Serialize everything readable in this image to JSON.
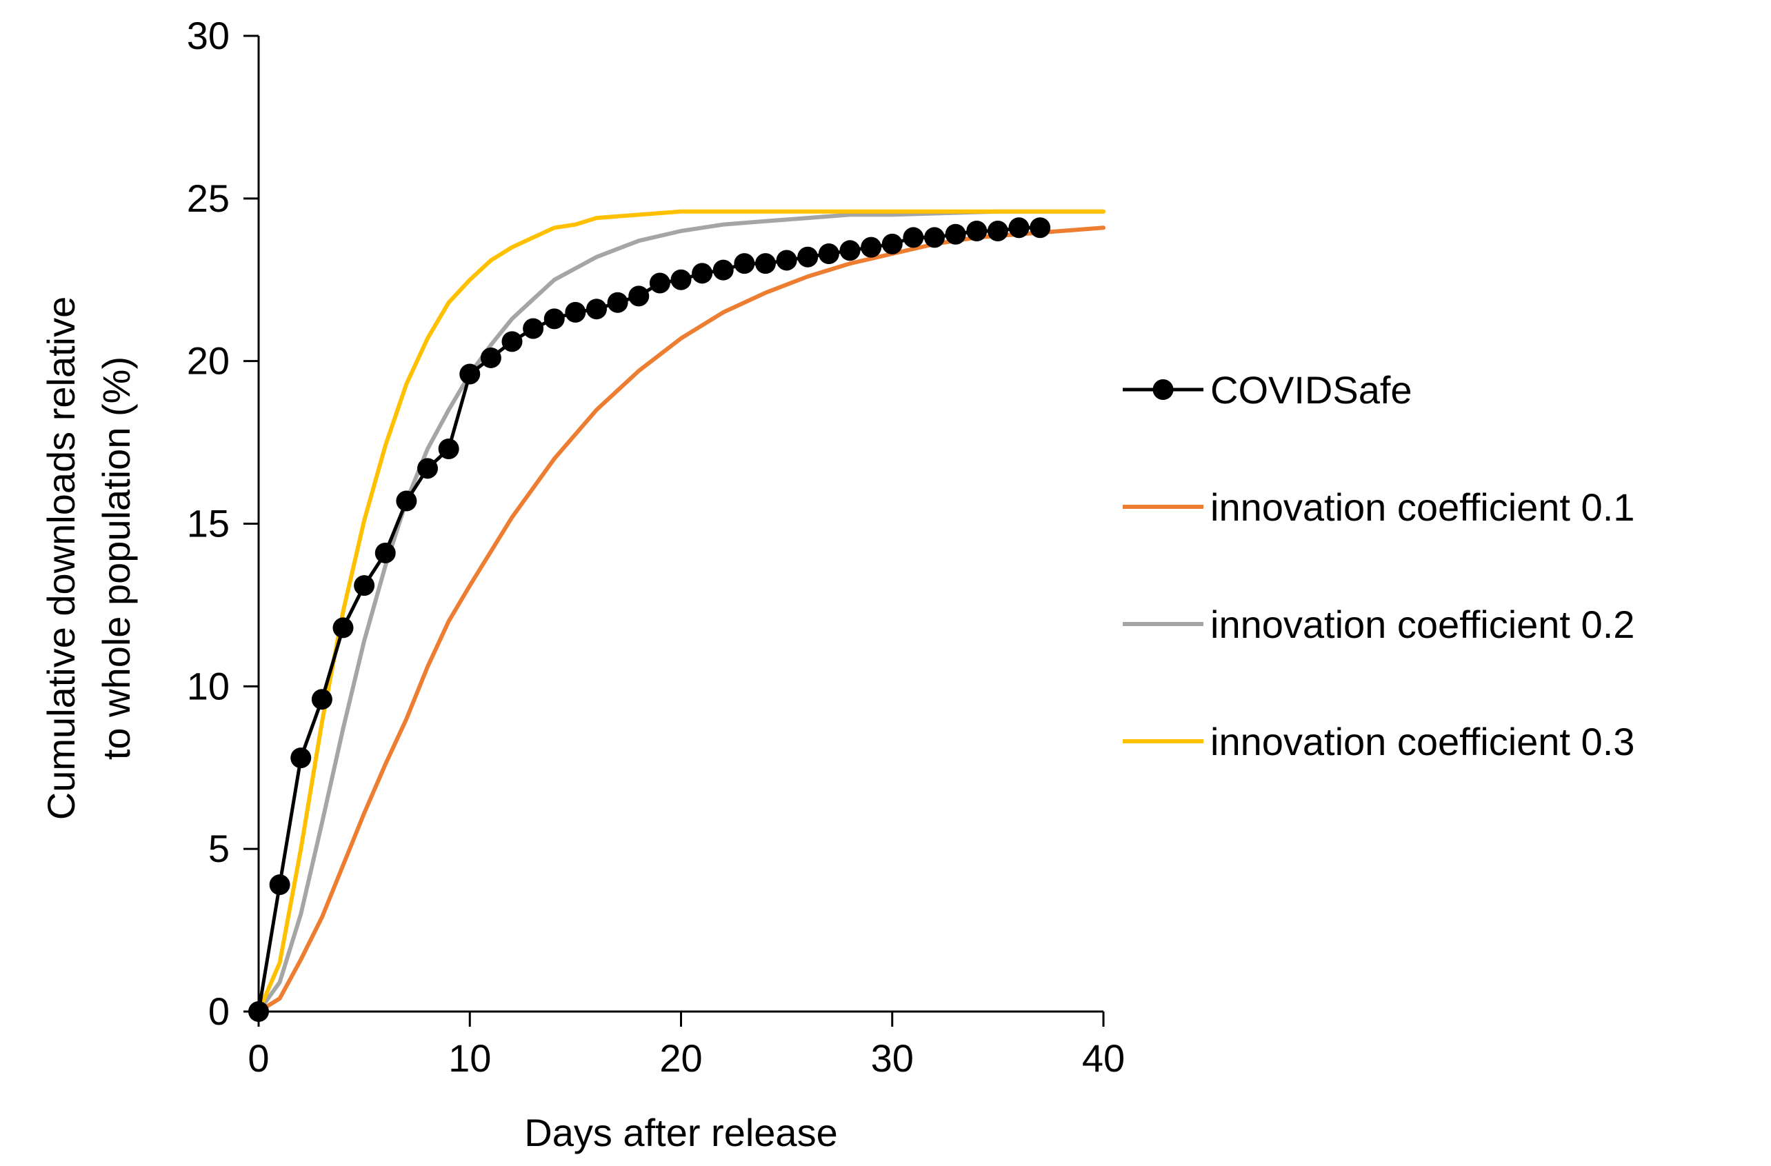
{
  "chart_data": {
    "type": "line",
    "title": "",
    "xlabel": "Days after release",
    "ylabel_lines": [
      "Cumulative downloads relative",
      "to whole population (%)"
    ],
    "xlim": [
      0,
      40
    ],
    "ylim": [
      0,
      30
    ],
    "x_ticks": [
      0,
      10,
      20,
      30,
      40
    ],
    "x_tick_labels": [
      "0",
      "10",
      "20",
      "30",
      "40"
    ],
    "y_ticks": [
      0,
      5,
      10,
      15,
      20,
      25,
      30
    ],
    "y_tick_labels": [
      "0",
      "5",
      "10",
      "15",
      "20",
      "25",
      "30"
    ],
    "grid": false,
    "legend_position": "right",
    "series": [
      {
        "name": "COVIDSafe",
        "color": "#000000",
        "marker": "circle",
        "x": [
          0,
          1,
          2,
          3,
          4,
          5,
          6,
          7,
          8,
          9,
          10,
          11,
          12,
          13,
          14,
          15,
          16,
          17,
          18,
          19,
          20,
          21,
          22,
          23,
          24,
          25,
          26,
          27,
          28,
          29,
          30,
          31,
          32,
          33,
          34,
          35,
          36,
          37
        ],
        "y": [
          0,
          3.9,
          7.8,
          9.6,
          11.8,
          13.1,
          14.1,
          15.7,
          16.7,
          17.3,
          19.6,
          20.1,
          20.6,
          21.0,
          21.3,
          21.5,
          21.6,
          21.8,
          22.0,
          22.4,
          22.5,
          22.7,
          22.8,
          23.0,
          23.0,
          23.1,
          23.2,
          23.3,
          23.4,
          23.5,
          23.6,
          23.8,
          23.8,
          23.9,
          24.0,
          24.0,
          24.1,
          24.1
        ]
      },
      {
        "name": "innovation coefficient 0.1",
        "color": "#ED7D31",
        "marker": "none",
        "x": [
          0,
          1,
          2,
          3,
          4,
          5,
          6,
          7,
          8,
          9,
          10,
          12,
          14,
          16,
          18,
          20,
          22,
          24,
          26,
          28,
          30,
          32,
          34,
          36,
          38,
          40
        ],
        "y": [
          0,
          0.4,
          1.6,
          2.9,
          4.5,
          6.1,
          7.6,
          9.0,
          10.6,
          12.0,
          13.1,
          15.2,
          17.0,
          18.5,
          19.7,
          20.7,
          21.5,
          22.1,
          22.6,
          23.0,
          23.3,
          23.6,
          23.8,
          23.9,
          24.0,
          24.1
        ]
      },
      {
        "name": "innovation coefficient 0.2",
        "color": "#A5A5A5",
        "marker": "none",
        "x": [
          0,
          1,
          2,
          3,
          4,
          5,
          6,
          7,
          8,
          9,
          10,
          11,
          12,
          13,
          14,
          16,
          18,
          20,
          22,
          24,
          26,
          28,
          30,
          35,
          40
        ],
        "y": [
          0,
          0.9,
          3.0,
          5.8,
          8.7,
          11.4,
          13.7,
          15.7,
          17.3,
          18.5,
          19.6,
          20.5,
          21.3,
          21.9,
          22.5,
          23.2,
          23.7,
          24.0,
          24.2,
          24.3,
          24.4,
          24.5,
          24.5,
          24.6,
          24.6
        ]
      },
      {
        "name": "innovation coefficient 0.3",
        "color": "#FFC000",
        "marker": "none",
        "x": [
          0,
          1,
          2,
          3,
          4,
          5,
          6,
          7,
          8,
          9,
          10,
          11,
          12,
          13,
          14,
          15,
          16,
          18,
          20,
          25,
          30,
          35,
          40
        ],
        "y": [
          0,
          1.5,
          5.0,
          8.9,
          12.3,
          15.1,
          17.4,
          19.3,
          20.7,
          21.8,
          22.5,
          23.1,
          23.5,
          23.8,
          24.1,
          24.2,
          24.4,
          24.5,
          24.6,
          24.6,
          24.6,
          24.6,
          24.6
        ]
      }
    ]
  }
}
